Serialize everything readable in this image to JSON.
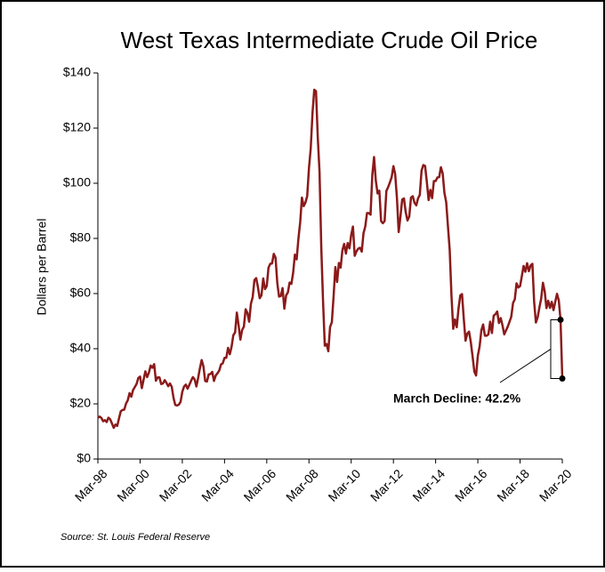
{
  "chart_data": {
    "type": "line",
    "title": "West Texas Intermediate Crude Oil Price",
    "y_label": "Dollars per Barrel",
    "source": "Source:  St. Louis Federal Reserve",
    "annotation": "March Decline:  42.2%",
    "color": "#8b1a1a",
    "ylim": [
      0,
      140
    ],
    "yticks": [
      {
        "value": 0,
        "label": "$0"
      },
      {
        "value": 20,
        "label": "$20"
      },
      {
        "value": 40,
        "label": "$40"
      },
      {
        "value": 60,
        "label": "$60"
      },
      {
        "value": 80,
        "label": "$80"
      },
      {
        "value": 100,
        "label": "$100"
      },
      {
        "value": 120,
        "label": "$120"
      },
      {
        "value": 140,
        "label": "$140"
      }
    ],
    "categories": [
      "Mar-98",
      null,
      null,
      null,
      null,
      null,
      null,
      null,
      null,
      null,
      null,
      null,
      null,
      null,
      null,
      null,
      null,
      null,
      null,
      null,
      null,
      null,
      null,
      null,
      "Mar-00",
      null,
      null,
      null,
      null,
      null,
      null,
      null,
      null,
      null,
      null,
      null,
      null,
      null,
      null,
      null,
      null,
      null,
      null,
      null,
      null,
      null,
      null,
      null,
      "Mar-02",
      null,
      null,
      null,
      null,
      null,
      null,
      null,
      null,
      null,
      null,
      null,
      null,
      null,
      null,
      null,
      null,
      null,
      null,
      null,
      null,
      null,
      null,
      null,
      "Mar-04",
      null,
      null,
      null,
      null,
      null,
      null,
      null,
      null,
      null,
      null,
      null,
      null,
      null,
      null,
      null,
      null,
      null,
      null,
      null,
      null,
      null,
      null,
      null,
      "Mar-06",
      null,
      null,
      null,
      null,
      null,
      null,
      null,
      null,
      null,
      null,
      null,
      null,
      null,
      null,
      null,
      null,
      null,
      null,
      null,
      null,
      null,
      null,
      null,
      "Mar-08",
      null,
      null,
      null,
      null,
      null,
      null,
      null,
      null,
      null,
      null,
      null,
      null,
      null,
      null,
      null,
      null,
      null,
      null,
      null,
      null,
      null,
      null,
      null,
      "Mar-10",
      null,
      null,
      null,
      null,
      null,
      null,
      null,
      null,
      null,
      null,
      null,
      null,
      null,
      null,
      null,
      null,
      null,
      null,
      null,
      null,
      null,
      null,
      null,
      "Mar-12",
      null,
      null,
      null,
      null,
      null,
      null,
      null,
      null,
      null,
      null,
      null,
      null,
      null,
      null,
      null,
      null,
      null,
      null,
      null,
      null,
      null,
      null,
      null,
      "Mar-14",
      null,
      null,
      null,
      null,
      null,
      null,
      null,
      null,
      null,
      null,
      null,
      null,
      null,
      null,
      null,
      null,
      null,
      null,
      null,
      null,
      null,
      null,
      null,
      "Mar-16",
      null,
      null,
      null,
      null,
      null,
      null,
      null,
      null,
      null,
      null,
      null,
      null,
      null,
      null,
      null,
      null,
      null,
      null,
      null,
      null,
      null,
      null,
      null,
      "Mar-18",
      null,
      null,
      null,
      null,
      null,
      null,
      null,
      null,
      null,
      null,
      null,
      null,
      null,
      null,
      null,
      null,
      null,
      null,
      null,
      null,
      null,
      null,
      null,
      "Mar-20"
    ],
    "values": [
      15.0,
      15.4,
      14.9,
      13.7,
      14.1,
      13.4,
      15.0,
      14.4,
      12.9,
      11.3,
      12.5,
      12.0,
      14.7,
      17.3,
      17.8,
      17.9,
      20.1,
      21.3,
      23.9,
      22.6,
      25.0,
      26.1,
      27.2,
      29.4,
      29.9,
      25.7,
      28.8,
      31.8,
      29.7,
      31.3,
      33.9,
      33.1,
      34.4,
      28.4,
      29.6,
      29.6,
      27.2,
      27.4,
      28.6,
      27.6,
      26.4,
      27.4,
      26.2,
      22.2,
      19.6,
      19.4,
      19.7,
      20.7,
      24.4,
      26.3,
      27.0,
      25.5,
      26.9,
      28.4,
      29.7,
      28.9,
      26.3,
      29.4,
      32.9,
      35.9,
      33.6,
      28.3,
      28.1,
      30.7,
      30.8,
      31.6,
      28.3,
      30.3,
      31.1,
      32.1,
      34.3,
      34.7,
      36.7,
      36.7,
      40.3,
      38.0,
      40.7,
      44.9,
      45.9,
      53.1,
      48.5,
      43.3,
      46.8,
      48.0,
      54.3,
      53.0,
      49.8,
      56.3,
      58.7,
      64.9,
      65.6,
      62.3,
      58.3,
      59.4,
      65.5,
      61.6,
      62.7,
      69.4,
      70.8,
      70.9,
      74.4,
      73.0,
      63.8,
      58.9,
      59.1,
      62.0,
      54.5,
      59.3,
      60.4,
      64.0,
      63.5,
      67.5,
      74.1,
      72.4,
      79.9,
      85.8,
      94.8,
      91.7,
      93.0,
      95.4,
      105.5,
      112.6,
      125.4,
      133.9,
      133.4,
      116.7,
      104.1,
      76.6,
      57.3,
      41.1,
      41.7,
      39.1,
      47.9,
      49.6,
      59.0,
      69.6,
      64.2,
      71.1,
      69.4,
      75.7,
      78.0,
      74.5,
      78.3,
      76.4,
      81.2,
      84.3,
      73.7,
      75.3,
      76.3,
      76.6,
      75.2,
      81.9,
      84.3,
      89.2,
      89.2,
      88.6,
      102.9,
      109.5,
      100.9,
      96.3,
      97.3,
      86.3,
      85.5,
      86.3,
      97.2,
      98.6,
      100.3,
      102.2,
      106.2,
      103.3,
      94.7,
      82.3,
      87.9,
      94.1,
      94.5,
      89.5,
      86.5,
      87.9,
      94.8,
      95.3,
      92.9,
      92.0,
      94.5,
      95.8,
      104.6,
      106.6,
      106.3,
      100.5,
      93.9,
      97.6,
      94.6,
      100.8,
      100.8,
      102.1,
      102.2,
      105.8,
      103.6,
      96.5,
      93.2,
      84.4,
      75.8,
      59.3,
      47.2,
      50.6,
      47.8,
      54.5,
      59.3,
      59.8,
      50.9,
      42.9,
      45.5,
      46.2,
      42.4,
      37.2,
      31.7,
      30.3,
      37.5,
      40.8,
      46.7,
      48.8,
      44.7,
      44.7,
      45.2,
      49.8,
      45.7,
      52.0,
      52.5,
      53.5,
      49.3,
      51.1,
      48.5,
      45.2,
      46.6,
      48.0,
      49.8,
      51.6,
      56.6,
      57.9,
      63.7,
      62.2,
      62.7,
      66.3,
      70.0,
      67.9,
      71.0,
      68.1,
      70.2,
      70.8,
      57.0,
      49.5,
      51.4,
      55.0,
      58.2,
      63.9,
      60.8,
      54.7,
      57.4,
      54.8,
      57.0,
      54.0,
      57.0,
      59.9,
      57.5,
      50.5,
      29.2
    ]
  }
}
